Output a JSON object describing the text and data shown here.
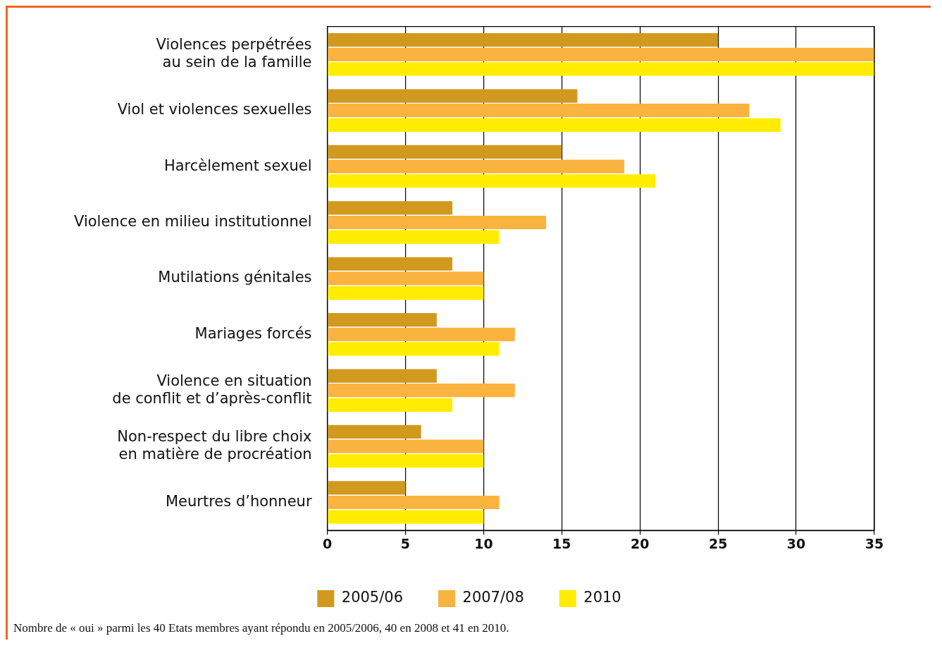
{
  "chart_data": {
    "type": "bar",
    "orientation": "horizontal",
    "categories": [
      "Violences perpétrées\nau sein de la famille",
      "Viol et violences sexuelles",
      "Harcèlement sexuel",
      "Violence en milieu institutionnel",
      "Mutilations génitales",
      "Mariages forcés",
      "Violence en situation\nde conflit et d’après-conflit",
      "Non-respect du libre choix\nen matière de procréation",
      "Meurtres d’honneur"
    ],
    "series": [
      {
        "name": "2005/06",
        "color": "#d2991f",
        "values": [
          25,
          16,
          15,
          8,
          8,
          7,
          7,
          6,
          5
        ]
      },
      {
        "name": "2007/08",
        "color": "#fbb33f",
        "values": [
          35,
          27,
          19,
          14,
          10,
          12,
          12,
          10,
          11
        ]
      },
      {
        "name": "2010",
        "color": "#ffec00",
        "values": [
          35,
          29,
          21,
          11,
          10,
          11,
          8,
          10,
          10
        ]
      }
    ],
    "xlim": [
      0,
      35
    ],
    "xticks": [
      0,
      5,
      10,
      15,
      20,
      25,
      30,
      35
    ],
    "grid": "x",
    "legend": "bottom",
    "annotations": [
      "Nombre de « oui » parmi les 40 Etats membres ayant répondu en 2005/2006, 40 en 2008 et 41 en 2010."
    ]
  }
}
